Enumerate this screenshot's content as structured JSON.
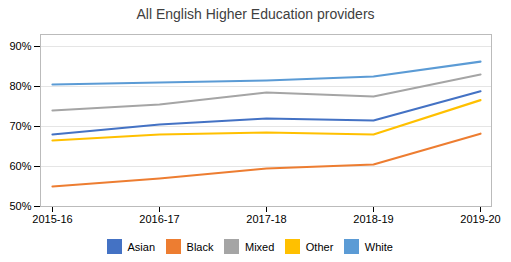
{
  "chart_data": {
    "type": "line",
    "title": "All English Higher Education providers",
    "categories": [
      "2015-16",
      "2016-17",
      "2017-18",
      "2018-19",
      "2019-20"
    ],
    "series": [
      {
        "name": "Asian",
        "color": "#4472C4",
        "values": [
          68.0,
          70.5,
          72.0,
          71.5,
          78.8
        ]
      },
      {
        "name": "Black",
        "color": "#ED7D31",
        "values": [
          55.0,
          57.0,
          59.5,
          60.5,
          68.2
        ]
      },
      {
        "name": "Mixed",
        "color": "#A5A5A5",
        "values": [
          74.0,
          75.5,
          78.5,
          77.5,
          83.0
        ]
      },
      {
        "name": "Other",
        "color": "#FFC000",
        "values": [
          66.5,
          68.0,
          68.5,
          68.0,
          76.6
        ]
      },
      {
        "name": "White",
        "color": "#5B9BD5",
        "values": [
          80.5,
          81.0,
          81.5,
          82.5,
          86.2
        ]
      }
    ],
    "ylim": [
      50,
      93
    ],
    "yticks": [
      {
        "value": 50,
        "label": "50%"
      },
      {
        "value": 60,
        "label": "60%"
      },
      {
        "value": 70,
        "label": "70%"
      },
      {
        "value": 80,
        "label": "80%"
      },
      {
        "value": 90,
        "label": "90%"
      }
    ],
    "grid": true,
    "legend": "bottom"
  }
}
